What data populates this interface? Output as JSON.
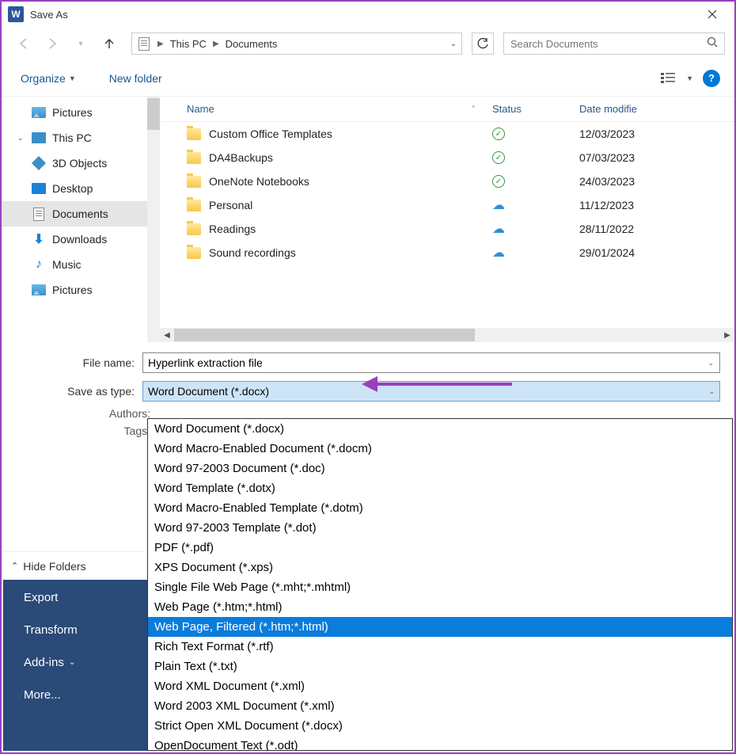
{
  "window": {
    "title": "Save As"
  },
  "breadcrumb": {
    "root": "This PC",
    "folder": "Documents"
  },
  "search": {
    "placeholder": "Search Documents"
  },
  "toolbar": {
    "organize": "Organize",
    "newfolder": "New folder"
  },
  "sidebar": {
    "items": [
      {
        "label": "Pictures",
        "icon": "pictures"
      },
      {
        "label": "This PC",
        "icon": "pc",
        "root": true
      },
      {
        "label": "3D Objects",
        "icon": "3d"
      },
      {
        "label": "Desktop",
        "icon": "desktop"
      },
      {
        "label": "Documents",
        "icon": "doc",
        "selected": true
      },
      {
        "label": "Downloads",
        "icon": "dl"
      },
      {
        "label": "Music",
        "icon": "music"
      },
      {
        "label": "Pictures",
        "icon": "pictures"
      }
    ]
  },
  "columns": {
    "name": "Name",
    "status": "Status",
    "date": "Date modifie"
  },
  "files": [
    {
      "name": "Custom Office Templates",
      "status": "check",
      "date": "12/03/2023"
    },
    {
      "name": "DA4Backups",
      "status": "check",
      "date": "07/03/2023"
    },
    {
      "name": "OneNote Notebooks",
      "status": "check",
      "date": "24/03/2023"
    },
    {
      "name": "Personal",
      "status": "cloud",
      "date": "11/12/2023"
    },
    {
      "name": "Readings",
      "status": "cloud",
      "date": "28/11/2022"
    },
    {
      "name": "Sound recordings",
      "status": "cloud",
      "date": "29/01/2024"
    }
  ],
  "form": {
    "filename_label": "File name:",
    "filename_value": "Hyperlink extraction file",
    "type_label": "Save as type:",
    "type_value": "Word Document (*.docx)",
    "authors_label": "Authors:",
    "tags_label": "Tags:"
  },
  "hidefolders": "Hide Folders",
  "darkpanel": {
    "export": "Export",
    "transform": "Transform",
    "addins": "Add-ins",
    "more": "More..."
  },
  "type_options": [
    "Word Document (*.docx)",
    "Word Macro-Enabled Document (*.docm)",
    "Word 97-2003 Document (*.doc)",
    "Word Template (*.dotx)",
    "Word Macro-Enabled Template (*.dotm)",
    "Word 97-2003 Template (*.dot)",
    "PDF (*.pdf)",
    "XPS Document (*.xps)",
    "Single File Web Page (*.mht;*.mhtml)",
    "Web Page (*.htm;*.html)",
    "Web Page, Filtered (*.htm;*.html)",
    "Rich Text Format (*.rtf)",
    "Plain Text (*.txt)",
    "Word XML Document (*.xml)",
    "Word 2003 XML Document (*.xml)",
    "Strict Open XML Document (*.docx)",
    "OpenDocument Text (*.odt)"
  ],
  "type_highlight_index": 10
}
